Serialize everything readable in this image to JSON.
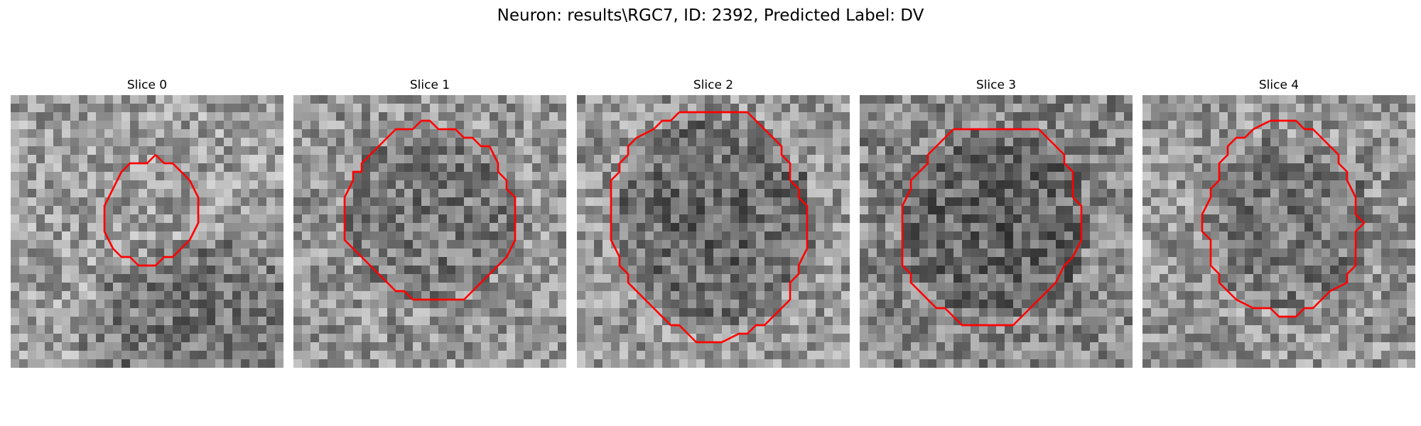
{
  "title": "Neuron: results\\RGC7, ID: 2392, Predicted Label: DV",
  "contour_color": "#ff0000",
  "slices": [
    {
      "title": "Slice 0",
      "contour": [
        [
          17,
          7
        ],
        [
          18,
          8
        ],
        [
          19,
          8
        ],
        [
          20,
          9
        ],
        [
          21,
          10
        ],
        [
          22,
          12
        ],
        [
          22,
          13
        ],
        [
          22,
          14
        ],
        [
          22,
          15
        ],
        [
          21,
          17
        ],
        [
          20,
          18
        ],
        [
          19,
          19
        ],
        [
          18,
          19
        ],
        [
          17,
          20
        ],
        [
          16,
          20
        ],
        [
          15,
          20
        ],
        [
          14,
          19
        ],
        [
          13,
          19
        ],
        [
          12,
          18
        ],
        [
          11,
          16
        ],
        [
          11,
          15
        ],
        [
          11,
          14
        ],
        [
          11,
          13
        ],
        [
          12,
          11
        ],
        [
          13,
          9
        ],
        [
          14,
          8
        ],
        [
          15,
          8
        ],
        [
          16,
          8
        ],
        [
          17,
          7
        ]
      ]
    },
    {
      "title": "Slice 1",
      "contour": [
        [
          15,
          3
        ],
        [
          16,
          3
        ],
        [
          17,
          4
        ],
        [
          19,
          4
        ],
        [
          20,
          5
        ],
        [
          21,
          5
        ],
        [
          22,
          6
        ],
        [
          23,
          6
        ],
        [
          24,
          8
        ],
        [
          24,
          9
        ],
        [
          25,
          10
        ],
        [
          25,
          11
        ],
        [
          26,
          12
        ],
        [
          26,
          13
        ],
        [
          26,
          17
        ],
        [
          25,
          19
        ],
        [
          24,
          20
        ],
        [
          23,
          21
        ],
        [
          22,
          22
        ],
        [
          21,
          23
        ],
        [
          20,
          24
        ],
        [
          14,
          24
        ],
        [
          13,
          23
        ],
        [
          12,
          23
        ],
        [
          11,
          22
        ],
        [
          10,
          21
        ],
        [
          9,
          20
        ],
        [
          8,
          19
        ],
        [
          7,
          18
        ],
        [
          6,
          17
        ],
        [
          6,
          16
        ],
        [
          6,
          12
        ],
        [
          7,
          10
        ],
        [
          7,
          9
        ],
        [
          8,
          9
        ],
        [
          8,
          8
        ],
        [
          9,
          7
        ],
        [
          10,
          6
        ],
        [
          11,
          5
        ],
        [
          12,
          4
        ],
        [
          14,
          4
        ],
        [
          15,
          3
        ]
      ]
    },
    {
      "title": "Slice 2",
      "contour": [
        [
          12,
          2
        ],
        [
          20,
          2
        ],
        [
          21,
          3
        ],
        [
          22,
          4
        ],
        [
          23,
          5
        ],
        [
          24,
          6
        ],
        [
          24,
          7
        ],
        [
          25,
          8
        ],
        [
          25,
          10
        ],
        [
          26,
          11
        ],
        [
          26,
          12
        ],
        [
          27,
          13
        ],
        [
          27,
          18
        ],
        [
          26,
          20
        ],
        [
          26,
          21
        ],
        [
          25,
          22
        ],
        [
          25,
          24
        ],
        [
          24,
          25
        ],
        [
          23,
          26
        ],
        [
          22,
          27
        ],
        [
          21,
          27
        ],
        [
          20,
          28
        ],
        [
          19,
          28
        ],
        [
          17,
          29
        ],
        [
          14,
          29
        ],
        [
          13,
          28
        ],
        [
          12,
          27
        ],
        [
          11,
          27
        ],
        [
          10,
          26
        ],
        [
          9,
          25
        ],
        [
          8,
          24
        ],
        [
          7,
          23
        ],
        [
          6,
          22
        ],
        [
          6,
          21
        ],
        [
          5,
          20
        ],
        [
          5,
          19
        ],
        [
          4,
          17
        ],
        [
          4,
          10
        ],
        [
          5,
          9
        ],
        [
          5,
          8
        ],
        [
          6,
          7
        ],
        [
          6,
          6
        ],
        [
          7,
          5
        ],
        [
          9,
          4
        ],
        [
          10,
          3
        ],
        [
          11,
          3
        ],
        [
          12,
          2
        ]
      ]
    },
    {
      "title": "Slice 3",
      "contour": [
        [
          11,
          4
        ],
        [
          21,
          4
        ],
        [
          22,
          5
        ],
        [
          23,
          6
        ],
        [
          24,
          7
        ],
        [
          24,
          8
        ],
        [
          25,
          9
        ],
        [
          25,
          10
        ],
        [
          25,
          12
        ],
        [
          26,
          13
        ],
        [
          26,
          17
        ],
        [
          25,
          19
        ],
        [
          24,
          20
        ],
        [
          23,
          22
        ],
        [
          22,
          23
        ],
        [
          21,
          24
        ],
        [
          20,
          25
        ],
        [
          19,
          26
        ],
        [
          18,
          27
        ],
        [
          12,
          27
        ],
        [
          11,
          26
        ],
        [
          10,
          25
        ],
        [
          9,
          25
        ],
        [
          8,
          24
        ],
        [
          7,
          23
        ],
        [
          6,
          22
        ],
        [
          6,
          21
        ],
        [
          5,
          20
        ],
        [
          5,
          18
        ],
        [
          5,
          13
        ],
        [
          6,
          11
        ],
        [
          6,
          10
        ],
        [
          7,
          9
        ],
        [
          8,
          8
        ],
        [
          8,
          7
        ],
        [
          9,
          6
        ],
        [
          10,
          5
        ],
        [
          11,
          4
        ]
      ]
    },
    {
      "title": "Slice 4",
      "contour": [
        [
          15,
          3
        ],
        [
          18,
          3
        ],
        [
          19,
          4
        ],
        [
          20,
          4
        ],
        [
          21,
          5
        ],
        [
          22,
          6
        ],
        [
          23,
          7
        ],
        [
          23,
          8
        ],
        [
          24,
          9
        ],
        [
          24,
          10
        ],
        [
          25,
          12
        ],
        [
          25,
          13
        ],
        [
          25,
          14
        ],
        [
          26,
          15
        ],
        [
          25,
          16
        ],
        [
          25,
          17
        ],
        [
          25,
          20
        ],
        [
          24,
          21
        ],
        [
          24,
          22
        ],
        [
          22,
          23
        ],
        [
          21,
          24
        ],
        [
          20,
          25
        ],
        [
          19,
          25
        ],
        [
          18,
          26
        ],
        [
          16,
          26
        ],
        [
          15,
          25
        ],
        [
          13,
          25
        ],
        [
          11,
          24
        ],
        [
          10,
          23
        ],
        [
          9,
          22
        ],
        [
          9,
          21
        ],
        [
          8,
          20
        ],
        [
          8,
          18
        ],
        [
          8,
          17
        ],
        [
          7,
          16
        ],
        [
          7,
          15
        ],
        [
          7,
          14
        ],
        [
          8,
          12
        ],
        [
          8,
          11
        ],
        [
          9,
          10
        ],
        [
          9,
          8
        ],
        [
          10,
          7
        ],
        [
          10,
          6
        ],
        [
          11,
          5
        ],
        [
          12,
          5
        ],
        [
          13,
          4
        ],
        [
          15,
          3
        ]
      ]
    }
  ]
}
